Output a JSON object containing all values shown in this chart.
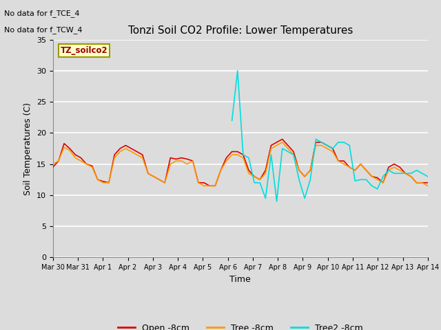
{
  "title": "Tonzi Soil CO2 Profile: Lower Temperatures",
  "xlabel": "Time",
  "ylabel": "Soil Temperatures (C)",
  "top_left_text_line1": "No data for f_TCE_4",
  "top_left_text_line2": "No data for f_TCW_4",
  "box_label": "TZ_soilco2",
  "ylim": [
    0,
    35
  ],
  "yticks": [
    0,
    5,
    10,
    15,
    20,
    25,
    30,
    35
  ],
  "background_color": "#dcdcdc",
  "grid_color": "#ffffff",
  "line_colors": {
    "open": "#dd0000",
    "tree": "#ff9900",
    "tree2": "#00dddd"
  },
  "legend_labels": [
    "Open -8cm",
    "Tree -8cm",
    "Tree2 -8cm"
  ],
  "x_tick_labels": [
    "Mar 30",
    "Mar 31",
    "Apr 1",
    "Apr 2",
    "Apr 3",
    "Apr 4",
    "Apr 5",
    "Apr 6",
    "Apr 7",
    "Apr 8",
    "Apr 9",
    "Apr 10",
    "Apr 11",
    "Apr 12",
    "Apr 13",
    "Apr 14"
  ],
  "open_8cm": [
    14.5,
    15.5,
    18.3,
    17.5,
    16.5,
    16.0,
    15.0,
    14.7,
    12.5,
    12.2,
    12.0,
    16.5,
    17.5,
    18.0,
    17.5,
    17.0,
    16.5,
    13.5,
    13.0,
    12.5,
    12.0,
    16.0,
    15.8,
    16.0,
    15.8,
    15.5,
    12.0,
    12.0,
    11.5,
    11.5,
    14.0,
    16.0,
    17.0,
    17.0,
    16.5,
    14.0,
    13.0,
    12.5,
    14.0,
    18.0,
    18.5,
    19.0,
    18.0,
    17.0,
    14.0,
    13.0,
    14.0,
    18.5,
    18.5,
    18.0,
    17.5,
    15.5,
    15.5,
    14.5,
    14.0,
    15.0,
    14.0,
    13.0,
    12.8,
    12.0,
    14.5,
    15.0,
    14.5,
    13.5,
    13.0,
    12.0,
    12.0,
    12.0
  ],
  "tree_8cm": [
    15.0,
    15.5,
    17.7,
    17.2,
    16.0,
    15.5,
    15.0,
    14.5,
    12.5,
    12.0,
    12.0,
    16.0,
    17.0,
    17.5,
    17.0,
    16.5,
    16.0,
    13.5,
    13.0,
    12.5,
    12.0,
    15.0,
    15.5,
    15.5,
    15.0,
    15.5,
    12.0,
    11.5,
    11.5,
    11.5,
    14.0,
    15.5,
    16.5,
    16.5,
    16.0,
    13.5,
    13.0,
    12.5,
    13.5,
    17.5,
    18.0,
    18.5,
    17.5,
    16.5,
    14.0,
    13.0,
    14.0,
    18.0,
    18.0,
    17.5,
    17.0,
    15.5,
    15.0,
    14.5,
    14.0,
    15.0,
    14.0,
    13.0,
    12.5,
    12.0,
    14.0,
    14.5,
    14.0,
    13.5,
    13.0,
    12.0,
    12.0,
    11.5
  ],
  "tree2_8cm": [
    null,
    null,
    null,
    null,
    null,
    null,
    null,
    null,
    null,
    null,
    null,
    null,
    null,
    null,
    null,
    null,
    null,
    null,
    null,
    null,
    null,
    null,
    null,
    null,
    null,
    null,
    null,
    null,
    null,
    null,
    null,
    null,
    22.0,
    30.0,
    16.5,
    16.0,
    12.0,
    12.0,
    9.5,
    16.5,
    9.0,
    17.5,
    17.0,
    16.5,
    12.5,
    9.5,
    12.5,
    19.0,
    18.5,
    18.0,
    17.5,
    18.5,
    18.5,
    18.0,
    12.3,
    12.5,
    12.5,
    11.5,
    11.0,
    13.0,
    14.0,
    13.5,
    13.5,
    13.5,
    13.5,
    14.0,
    13.5,
    13.0
  ]
}
